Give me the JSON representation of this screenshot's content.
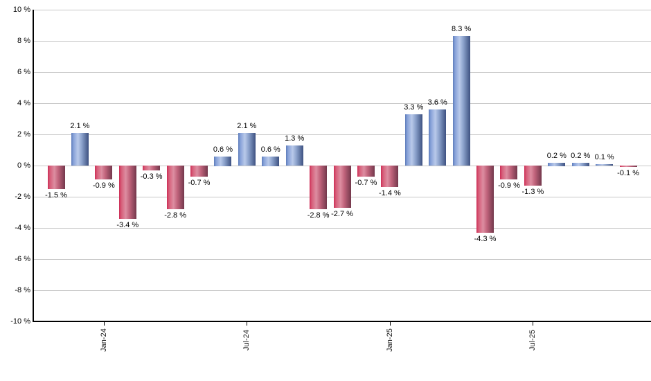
{
  "chart_data": {
    "type": "bar",
    "title": "",
    "unit": "%",
    "values": [
      -1.5,
      2.1,
      -0.9,
      -3.4,
      -0.3,
      -2.8,
      -0.7,
      0.6,
      2.1,
      0.6,
      1.3,
      -2.8,
      -2.7,
      -0.7,
      -1.4,
      3.3,
      3.6,
      8.3,
      -4.3,
      -0.9,
      -1.3,
      0.2,
      0.2,
      0.1,
      -0.1
    ],
    "bar_labels": [
      "-1.5 %",
      "2.1 %",
      "-0.9 %",
      "-3.4 %",
      "-0.3 %",
      "-2.8 %",
      "-0.7 %",
      "0.6 %",
      "2.1 %",
      "0.6 %",
      "1.3 %",
      "-2.8 %",
      "-2.7 %",
      "-0.7 %",
      "-1.4 %",
      "3.3 %",
      "3.6 %",
      "8.3 %",
      "-4.3 %",
      "-0.9 %",
      "-1.3 %",
      "0.2 %",
      "0.2 %",
      "0.1 %",
      "-0.1 %"
    ],
    "x_ticks": [
      {
        "label": "Jan-24",
        "bar_index": 2
      },
      {
        "label": "Jul-24",
        "bar_index": 8
      },
      {
        "label": "Jan-25",
        "bar_index": 14
      },
      {
        "label": "Jul-25",
        "bar_index": 20
      }
    ],
    "y_ticks": [
      {
        "label": "10 %",
        "value": 10
      },
      {
        "label": "8 %",
        "value": 8
      },
      {
        "label": "6 %",
        "value": 6
      },
      {
        "label": "4 %",
        "value": 4
      },
      {
        "label": "2 %",
        "value": 2
      },
      {
        "label": "0 %",
        "value": 0
      },
      {
        "label": "-2 %",
        "value": -2
      },
      {
        "label": "-4 %",
        "value": -4
      },
      {
        "label": "-6 %",
        "value": -6
      },
      {
        "label": "-8 %",
        "value": -8
      },
      {
        "label": "-10 %",
        "value": -10
      }
    ],
    "ylim": [
      -10,
      10
    ],
    "grid": true,
    "legend": "none",
    "colors": {
      "positive_bar_gradient": [
        "#5d7cba",
        "#86a1d8",
        "#b9c9ea",
        "#8ca2cc",
        "#3d5181"
      ],
      "negative_bar_gradient": [
        "#cd2c55",
        "#d65c78",
        "#dd8ea1",
        "#c2647c",
        "#73384c"
      ],
      "gridline": "#c6c6c6",
      "axis": "#000000",
      "label_text": "#000000"
    }
  }
}
